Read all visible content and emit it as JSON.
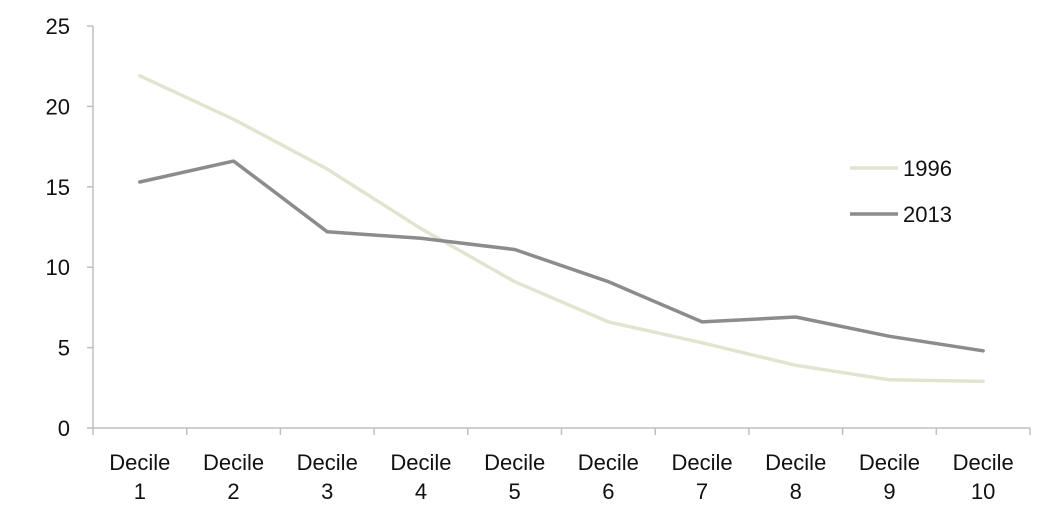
{
  "chart_data": {
    "type": "line",
    "categories": [
      [
        "Decile",
        "1"
      ],
      [
        "Decile",
        "2"
      ],
      [
        "Decile",
        "3"
      ],
      [
        "Decile",
        "4"
      ],
      [
        "Decile",
        "5"
      ],
      [
        "Decile",
        "6"
      ],
      [
        "Decile",
        "7"
      ],
      [
        "Decile",
        "8"
      ],
      [
        "Decile",
        "9"
      ],
      [
        "Decile",
        "10"
      ]
    ],
    "series": [
      {
        "name": "1996",
        "color": "#e3e4d0",
        "values": [
          21.9,
          19.2,
          16.1,
          12.4,
          9.1,
          6.6,
          5.3,
          3.9,
          3.0,
          2.9
        ]
      },
      {
        "name": "2013",
        "color": "#8c8c8c",
        "values": [
          15.3,
          16.6,
          12.2,
          11.8,
          11.1,
          9.1,
          6.6,
          6.9,
          5.7,
          4.8
        ]
      }
    ],
    "ylim": [
      0,
      25
    ],
    "yticks": [
      0,
      5,
      10,
      15,
      20,
      25
    ],
    "title": "",
    "xlabel": "",
    "ylabel": "",
    "grid": false,
    "legend_position": "right"
  }
}
